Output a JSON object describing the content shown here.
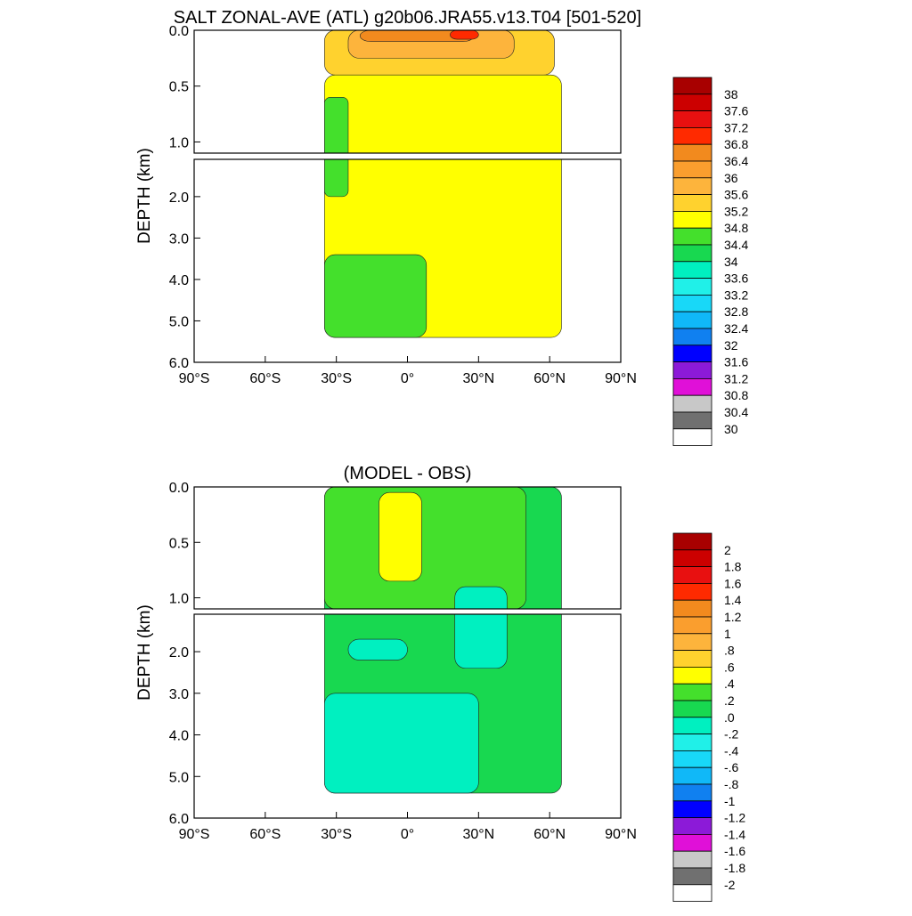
{
  "chart_data": [
    {
      "type": "heatmap",
      "title": "SALT ZONAL-AVE (ATL) g20b06.JRA55.v13.T04 [501-520]",
      "ylabel": "DEPTH (km)",
      "xlabel": "",
      "xlim": [
        -90,
        90
      ],
      "ylim": [
        0,
        6
      ],
      "x_ticks": [
        "90°S",
        "60°S",
        "30°S",
        "0°",
        "30°N",
        "60°N",
        "90°N"
      ],
      "y_ticks_upper": [
        "0.0",
        "0.5",
        "1.0"
      ],
      "y_ticks_lower": [
        "2.0",
        "3.0",
        "4.0",
        "5.0",
        "6.0"
      ],
      "colorbar_labels": [
        "38",
        "37.6",
        "37.2",
        "36.8",
        "36.4",
        "36",
        "35.6",
        "35.2",
        "34.8",
        "34.4",
        "34",
        "33.6",
        "33.2",
        "32.8",
        "32.4",
        "32",
        "31.6",
        "31.2",
        "30.8",
        "30.4",
        "30"
      ],
      "colorbar_colors": [
        "#a80000",
        "#cc0000",
        "#e81010",
        "#ff2a00",
        "#f28a1e",
        "#fa9e2e",
        "#fdb43c",
        "#ffd22e",
        "#ffff00",
        "#44e02c",
        "#18d850",
        "#00f0c0",
        "#20f0e8",
        "#18d8f8",
        "#10b8f8",
        "#1080f0",
        "#0000ff",
        "#8c1ad8",
        "#e010d8",
        "#c8c8c8",
        "#707070",
        "#ffffff"
      ],
      "regions": [
        {
          "value": 35.0,
          "lat_range": [
            -35,
            65
          ],
          "depth_range": [
            0.4,
            5.4
          ]
        },
        {
          "value": 34.6,
          "lat_range": [
            -35,
            -25
          ],
          "depth_range": [
            0.6,
            2.0
          ]
        },
        {
          "value": 34.6,
          "lat_range": [
            -35,
            8
          ],
          "depth_range": [
            3.4,
            5.4
          ]
        },
        {
          "value": 35.4,
          "lat_range": [
            -35,
            62
          ],
          "depth_range": [
            0.0,
            0.4
          ]
        },
        {
          "value": 35.8,
          "lat_range": [
            -25,
            45
          ],
          "depth_range": [
            0.0,
            0.25
          ]
        },
        {
          "value": 36.6,
          "lat_range": [
            -20,
            28
          ],
          "depth_range": [
            0.0,
            0.1
          ]
        },
        {
          "value": 37.0,
          "lat_range": [
            18,
            30
          ],
          "depth_range": [
            0.0,
            0.08
          ]
        }
      ]
    },
    {
      "type": "heatmap",
      "title": "(MODEL - OBS)",
      "ylabel": "DEPTH (km)",
      "xlabel": "",
      "xlim": [
        -90,
        90
      ],
      "ylim": [
        0,
        6
      ],
      "x_ticks": [
        "90°S",
        "60°S",
        "30°S",
        "0°",
        "30°N",
        "60°N",
        "90°N"
      ],
      "y_ticks_upper": [
        "0.0",
        "0.5",
        "1.0"
      ],
      "y_ticks_lower": [
        "2.0",
        "3.0",
        "4.0",
        "5.0",
        "6.0"
      ],
      "colorbar_labels": [
        "2",
        "1.8",
        "1.6",
        "1.4",
        "1.2",
        "1",
        ".8",
        ".6",
        ".4",
        ".2",
        ".0",
        "-.2",
        "-.4",
        "-.6",
        "-.8",
        "-1",
        "-1.2",
        "-1.4",
        "-1.6",
        "-1.8",
        "-2"
      ],
      "colorbar_colors": [
        "#a80000",
        "#cc0000",
        "#e81010",
        "#ff2a00",
        "#f28a1e",
        "#fa9e2e",
        "#fdb43c",
        "#ffd22e",
        "#ffff00",
        "#44e02c",
        "#18d850",
        "#00f0c0",
        "#20f0e8",
        "#18d8f8",
        "#10b8f8",
        "#1080f0",
        "#0000ff",
        "#8c1ad8",
        "#e010d8",
        "#c8c8c8",
        "#707070",
        "#ffffff"
      ],
      "regions": [
        {
          "value": 0.1,
          "lat_range": [
            -35,
            65
          ],
          "depth_range": [
            0.0,
            5.4
          ]
        },
        {
          "value": 0.3,
          "lat_range": [
            -35,
            50
          ],
          "depth_range": [
            0.0,
            1.1
          ]
        },
        {
          "value": 0.5,
          "lat_range": [
            -12,
            6
          ],
          "depth_range": [
            0.05,
            0.85
          ]
        },
        {
          "value": -0.1,
          "lat_range": [
            -35,
            30
          ],
          "depth_range": [
            3.0,
            5.4
          ]
        },
        {
          "value": -0.1,
          "lat_range": [
            -25,
            0
          ],
          "depth_range": [
            1.7,
            2.2
          ]
        },
        {
          "value": -0.1,
          "lat_range": [
            20,
            42
          ],
          "depth_range": [
            0.9,
            2.4
          ]
        }
      ]
    }
  ]
}
